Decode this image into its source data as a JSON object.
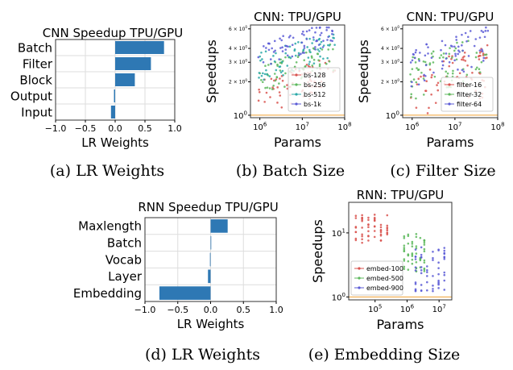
{
  "figure": {
    "colors": {
      "bar": "#2e78b4",
      "axis": "#000000",
      "grid": "#dddddd",
      "c1": "#d9534f",
      "c2": "#5cb85c",
      "c3": "#5b5bd6",
      "c4": "#2aa8a8"
    }
  },
  "chart_data": [
    {
      "id": "a",
      "type": "bar",
      "orientation": "horizontal",
      "title": "CNN Speedup TPU/GPU",
      "caption": "(a) LR Weights",
      "xlabel": "LR Weights",
      "xlim": [
        -1.0,
        1.0
      ],
      "xticks": [
        "−1.0",
        "−0.5",
        "0.0",
        "0.5",
        "1.0"
      ],
      "xtick_values": [
        -1.0,
        -0.5,
        0.0,
        0.5,
        1.0
      ],
      "categories": [
        "Batch",
        "Filter",
        "Block",
        "Output",
        "Input"
      ],
      "values": [
        0.82,
        0.6,
        0.33,
        -0.02,
        -0.07
      ],
      "grid": true
    },
    {
      "id": "b",
      "type": "scatter",
      "title": "CNN: TPU/GPU",
      "caption": "(b) Batch Size",
      "xlabel": "Params",
      "ylabel": "Speedups",
      "xscale": "log",
      "yscale": "log",
      "xlim": [
        600000,
        100000000
      ],
      "ylim": [
        0.95,
        6.5
      ],
      "xticks": [
        "10",
        "10",
        "10"
      ],
      "xtick_exps": [
        "6",
        "7",
        "8"
      ],
      "xtick_values": [
        1000000,
        10000000,
        100000000
      ],
      "yticks": [
        "10",
        "2 × 10",
        "3 × 10",
        "4 × 10",
        "6 × 10"
      ],
      "ytick_exps": [
        "0",
        "0",
        "0",
        "0",
        "0"
      ],
      "ytick_values": [
        1,
        2,
        3,
        4,
        6
      ],
      "legend_position": "lower-right",
      "series": [
        {
          "name": "bs-128",
          "color_key": "c1",
          "center": 2.0,
          "spread": 0.35
        },
        {
          "name": "bs-256",
          "color_key": "c2",
          "center": 2.8,
          "spread": 0.3
        },
        {
          "name": "bs-512",
          "color_key": "c4",
          "center": 3.6,
          "spread": 0.3
        },
        {
          "name": "bs-1k",
          "color_key": "c3",
          "center": 4.6,
          "spread": 0.25
        }
      ]
    },
    {
      "id": "c",
      "type": "scatter",
      "title": "CNN: TPU/GPU",
      "caption": "(c) Filter Size",
      "xlabel": "Params",
      "ylabel": "Speedups",
      "xscale": "log",
      "yscale": "log",
      "xlim": [
        600000,
        100000000
      ],
      "ylim": [
        0.95,
        6.5
      ],
      "xticks": [
        "10",
        "10",
        "10"
      ],
      "xtick_exps": [
        "6",
        "7",
        "8"
      ],
      "xtick_values": [
        1000000,
        10000000,
        100000000
      ],
      "yticks": [
        "10",
        "2 × 10",
        "3 × 10",
        "4 × 10",
        "6 × 10"
      ],
      "ytick_exps": [
        "0",
        "0",
        "0",
        "0",
        "0"
      ],
      "ytick_values": [
        1,
        2,
        3,
        4,
        6
      ],
      "legend_position": "lower-right",
      "series": [
        {
          "name": "filter-16",
          "color_key": "c1",
          "center": 2.3,
          "spread": 0.5
        },
        {
          "name": "filter-32",
          "color_key": "c2",
          "center": 3.1,
          "spread": 0.45
        },
        {
          "name": "filter-64",
          "color_key": "c3",
          "center": 3.7,
          "spread": 0.4
        }
      ]
    },
    {
      "id": "d",
      "type": "bar",
      "orientation": "horizontal",
      "title": "RNN Speedup TPU/GPU",
      "caption": "(d) LR Weights",
      "xlabel": "LR Weights",
      "xlim": [
        -1.0,
        1.0
      ],
      "xticks": [
        "−1.0",
        "−0.5",
        "0.0",
        "0.5",
        "1.0"
      ],
      "xtick_values": [
        -1.0,
        -0.5,
        0.0,
        0.5,
        1.0
      ],
      "categories": [
        "Maxlength",
        "Batch",
        "Vocab",
        "Layer",
        "Embedding"
      ],
      "values": [
        0.26,
        0.0,
        -0.01,
        -0.04,
        -0.78
      ],
      "grid": true
    },
    {
      "id": "e",
      "type": "scatter",
      "title": "RNN: TPU/GPU",
      "caption": "(e) Embedding Size",
      "xlabel": "Params",
      "ylabel": "Speedups",
      "xscale": "log",
      "yscale": "log",
      "xlim": [
        15000,
        25000000
      ],
      "ylim": [
        0.9,
        30
      ],
      "xticks": [
        "10",
        "10",
        "10"
      ],
      "xtick_exps": [
        "5",
        "6",
        "7"
      ],
      "xtick_values": [
        100000,
        1000000,
        10000000
      ],
      "yticks": [
        "10",
        "10"
      ],
      "ytick_exps": [
        "0",
        "1"
      ],
      "ytick_values": [
        1,
        10
      ],
      "legend_position": "lower-left",
      "series": [
        {
          "name": "embed-100",
          "color_key": "c1",
          "x_range": [
            20000,
            300000
          ],
          "y_range": [
            7,
            20
          ]
        },
        {
          "name": "embed-500",
          "color_key": "c2",
          "x_range": [
            700000,
            4000000
          ],
          "y_range": [
            2.5,
            10
          ]
        },
        {
          "name": "embed-900",
          "color_key": "c3",
          "x_range": [
            1500000,
            18000000
          ],
          "y_range": [
            1.2,
            6
          ]
        }
      ]
    }
  ]
}
